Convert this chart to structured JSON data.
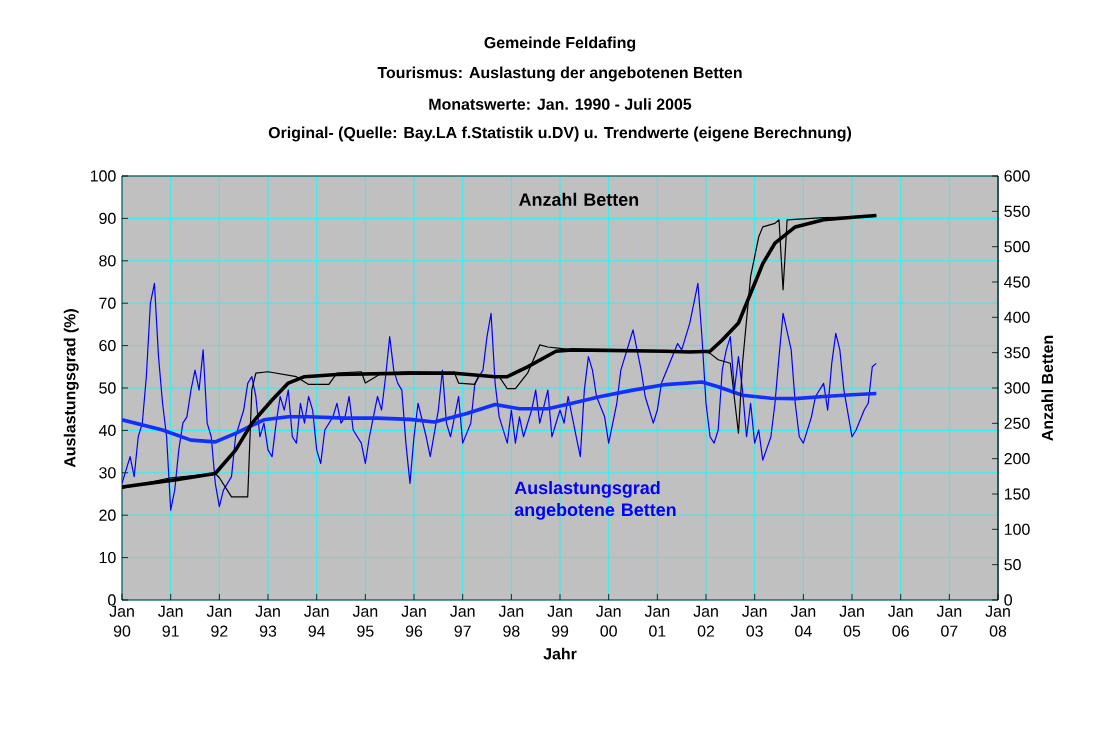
{
  "chart_data": {
    "type": "line",
    "title": "Gemeinde Feldafing",
    "subtitle": "Tourismus: Auslastung der angebotenen Betten",
    "annotations": [
      "Monatswerte: Jan. 1990 - Juli 2005",
      "Original- (Quelle: Bay.LA f.Statistik u.DV) u. Trendwerte (eigene Berechnung)"
    ],
    "xlabel": "Jahr",
    "ylabel": "Auslastungsgrad (%)",
    "y2label": "Anzahl Betten",
    "grid": true,
    "xlim": [
      "1990-01",
      "2008-01"
    ],
    "xticks": [
      {
        "value": "1990-01",
        "label": "Jan 90"
      },
      {
        "value": "1991-01",
        "label": "Jan 91"
      },
      {
        "value": "1992-01",
        "label": "Jan 92"
      },
      {
        "value": "1993-01",
        "label": "Jan 93"
      },
      {
        "value": "1994-01",
        "label": "Jan 94"
      },
      {
        "value": "1995-01",
        "label": "Jan 95"
      },
      {
        "value": "1996-01",
        "label": "Jan 96"
      },
      {
        "value": "1997-01",
        "label": "Jan 97"
      },
      {
        "value": "1998-01",
        "label": "Jan 98"
      },
      {
        "value": "1999-01",
        "label": "Jan 99"
      },
      {
        "value": "2000-01",
        "label": "Jan 00"
      },
      {
        "value": "2001-01",
        "label": "Jan 01"
      },
      {
        "value": "2002-01",
        "label": "Jan 02"
      },
      {
        "value": "2003-01",
        "label": "Jan 03"
      },
      {
        "value": "2004-01",
        "label": "Jan 04"
      },
      {
        "value": "2005-01",
        "label": "Jan 05"
      },
      {
        "value": "2006-01",
        "label": "Jan 06"
      },
      {
        "value": "2007-01",
        "label": "Jan 07"
      },
      {
        "value": "2008-01",
        "label": "Jan 08"
      }
    ],
    "ylim": [
      0,
      100
    ],
    "yticks": [
      0,
      10,
      20,
      30,
      40,
      50,
      60,
      70,
      80,
      90,
      100
    ],
    "y2lim": [
      0,
      600
    ],
    "y2ticks": [
      0,
      50,
      100,
      150,
      200,
      250,
      300,
      350,
      400,
      450,
      500,
      550,
      600
    ],
    "series": [
      {
        "name": "Auslastungsgrad angebotene Betten",
        "color": "#0000ff",
        "x": [
          "1990-01",
          "1990-03",
          "1990-04",
          "1990-05",
          "1990-06",
          "1990-07",
          "1990-08",
          "1990-09",
          "1990-10",
          "1990-11",
          "1990-12",
          "1991-01",
          "1991-02",
          "1991-03",
          "1991-04",
          "1991-05",
          "1991-06",
          "1991-07",
          "1991-08",
          "1991-09",
          "1991-10",
          "1991-11",
          "1991-12",
          "1992-01",
          "1992-02",
          "1992-04",
          "1992-05",
          "1992-07",
          "1992-08",
          "1992-09",
          "1992-10",
          "1992-11",
          "1992-12",
          "1993-01",
          "1993-02",
          "1993-03",
          "1993-04",
          "1993-05",
          "1993-06",
          "1993-07",
          "1993-08",
          "1993-09",
          "1993-10",
          "1993-11",
          "1993-12",
          "1994-01",
          "1994-02",
          "1994-03",
          "1994-05",
          "1994-06",
          "1994-07",
          "1994-08",
          "1994-09",
          "1994-10",
          "1994-12",
          "1995-01",
          "1995-02",
          "1995-04",
          "1995-05",
          "1995-06",
          "1995-07",
          "1995-08",
          "1995-09",
          "1995-10",
          "1995-11",
          "1995-12",
          "1996-01",
          "1996-02",
          "1996-04",
          "1996-05",
          "1996-07",
          "1996-08",
          "1996-09",
          "1996-10",
          "1996-12",
          "1997-01",
          "1997-03",
          "1997-04",
          "1997-06",
          "1997-07",
          "1997-08",
          "1997-09",
          "1997-10",
          "1997-12",
          "1998-01",
          "1998-02",
          "1998-03",
          "1998-04",
          "1998-06",
          "1998-07",
          "1998-08",
          "1998-10",
          "1998-11",
          "1999-01",
          "1999-02",
          "1999-03",
          "1999-05",
          "1999-06",
          "1999-07",
          "1999-08",
          "1999-09",
          "1999-10",
          "1999-12",
          "2000-01",
          "2000-03",
          "2000-04",
          "2000-06",
          "2000-07",
          "2000-09",
          "2000-10",
          "2000-12",
          "2001-01",
          "2001-02",
          "2001-04",
          "2001-06",
          "2001-07",
          "2001-09",
          "2001-10",
          "2001-11",
          "2001-12",
          "2002-01",
          "2002-02",
          "2002-03",
          "2002-04",
          "2002-05",
          "2002-06",
          "2002-07",
          "2002-08",
          "2002-09",
          "2002-10",
          "2002-11",
          "2002-12",
          "2003-01",
          "2003-02",
          "2003-03",
          "2003-05",
          "2003-06",
          "2003-07",
          "2003-08",
          "2003-10",
          "2003-11",
          "2003-12",
          "2004-01",
          "2004-03",
          "2004-04",
          "2004-06",
          "2004-07",
          "2004-08",
          "2004-09",
          "2004-10",
          "2004-11",
          "2005-01",
          "2005-02",
          "2005-04",
          "2005-05",
          "2005-06",
          "2005-07"
        ],
        "values": [
          27.5,
          33.8,
          29.1,
          38.5,
          41.7,
          52.7,
          70.0,
          74.7,
          57.4,
          46.4,
          38.5,
          21.2,
          25.9,
          35.4,
          41.7,
          43.2,
          49.5,
          54.2,
          49.5,
          59.0,
          41.7,
          38.5,
          27.5,
          22.0,
          25.9,
          29.1,
          38.5,
          44.8,
          51.1,
          52.7,
          48.0,
          38.5,
          41.7,
          35.4,
          33.8,
          41.7,
          48.0,
          44.8,
          49.5,
          38.5,
          37.0,
          46.4,
          41.7,
          48.0,
          44.8,
          35.4,
          32.2,
          40.1,
          43.2,
          46.4,
          41.7,
          43.2,
          48.0,
          40.1,
          37.0,
          32.2,
          38.5,
          48.0,
          44.8,
          52.7,
          62.1,
          54.2,
          51.1,
          49.5,
          37.0,
          27.5,
          38.5,
          46.4,
          38.5,
          33.8,
          44.8,
          54.2,
          41.7,
          38.5,
          48.0,
          37.0,
          41.7,
          51.1,
          54.2,
          62.1,
          67.6,
          51.1,
          43.2,
          37.0,
          44.8,
          37.0,
          43.2,
          38.5,
          44.8,
          49.5,
          41.7,
          49.5,
          38.5,
          44.8,
          41.7,
          48.0,
          38.5,
          33.8,
          49.5,
          57.4,
          54.2,
          48.0,
          43.2,
          37.0,
          46.4,
          54.2,
          60.5,
          63.7,
          54.2,
          48.0,
          41.7,
          44.8,
          51.1,
          55.8,
          60.5,
          59.0,
          65.3,
          70.0,
          74.7,
          62.1,
          46.4,
          38.5,
          37.0,
          40.1,
          54.2,
          59.0,
          62.1,
          49.5,
          57.4,
          49.5,
          38.5,
          46.4,
          37.0,
          40.1,
          33.0,
          38.5,
          46.4,
          57.4,
          67.6,
          59.0,
          46.4,
          38.5,
          37.0,
          43.2,
          48.0,
          51.1,
          44.8,
          55.8,
          62.9,
          59.0,
          49.5,
          38.5,
          40.1,
          44.8,
          46.4,
          55.0,
          55.8
        ]
      },
      {
        "color": "#1030ff",
        "x": [
          "1990-01",
          "1990-11",
          "1991-06",
          "1991-12",
          "1992-05",
          "1992-12",
          "1993-06",
          "1993-11",
          "1994-08",
          "1995-04",
          "1995-12",
          "1996-06",
          "1997-02",
          "1997-09",
          "1998-03",
          "1998-10",
          "1999-04",
          "1999-11",
          "2000-07",
          "2001-03",
          "2001-12",
          "2002-04",
          "2002-10",
          "2003-05",
          "2003-11",
          "2004-06",
          "2005-01",
          "2005-07"
        ],
        "values": [
          42.5,
          40.1,
          37.7,
          37.3,
          39.3,
          42.5,
          43.2,
          43.2,
          42.9,
          42.9,
          42.6,
          42.0,
          44.0,
          46.1,
          45.1,
          45.1,
          46.4,
          48.0,
          49.5,
          50.8,
          51.4,
          50.3,
          48.3,
          47.6,
          47.5,
          48.0,
          48.4,
          48.7
        ]
      },
      {
        "name": "Anzahl Betten",
        "color": "#000000",
        "axis": "y2",
        "x": [
          "1990-01",
          "1991-01",
          "1991-12",
          "1992-01",
          "1992-04",
          "1992-08",
          "1992-09",
          "1992-10",
          "1993-01",
          "1993-08",
          "1993-11",
          "1994-04",
          "1994-06",
          "1994-12",
          "1995-01",
          "1995-05",
          "1995-12",
          "1996-11",
          "1996-12",
          "1997-04",
          "1997-05",
          "1997-10",
          "1997-12",
          "1998-02",
          "1998-05",
          "1998-08",
          "1998-10",
          "1999-01",
          "1999-04",
          "1999-11",
          "2000-07",
          "2001-03",
          "2001-12",
          "2002-02",
          "2002-04",
          "2002-07",
          "2002-09",
          "2002-10",
          "2002-12",
          "2003-02",
          "2003-03",
          "2003-06",
          "2003-07",
          "2003-08",
          "2003-09",
          "2004-06",
          "2005-02",
          "2005-07"
        ],
        "values": [
          158,
          173,
          179,
          173,
          146,
          146,
          297,
          321,
          323,
          316,
          305,
          305,
          321,
          323,
          307,
          321,
          323,
          321,
          307,
          305,
          318,
          316,
          299,
          299,
          321,
          361,
          358,
          356,
          354,
          352,
          352,
          352,
          352,
          349,
          340,
          335,
          236,
          335,
          458,
          514,
          528,
          533,
          538,
          439,
          538,
          541,
          542,
          544
        ]
      },
      {
        "color": "#000000",
        "axis": "y2",
        "x": [
          "1990-01",
          "1991-02",
          "1991-12",
          "1992-05",
          "1992-09",
          "1993-02",
          "1993-06",
          "1993-10",
          "1994-06",
          "1995-12",
          "1996-11",
          "1997-09",
          "1997-12",
          "1998-05",
          "1998-12",
          "1999-04",
          "2001-03",
          "2001-09",
          "2002-02",
          "2002-05",
          "2002-09",
          "2002-12",
          "2003-03",
          "2003-06",
          "2003-11",
          "2004-06",
          "2005-02",
          "2005-07"
        ],
        "values": [
          160,
          170,
          179,
          212,
          250,
          283,
          307,
          316,
          319,
          321,
          321,
          316,
          316,
          330,
          352,
          354,
          352,
          351,
          352,
          368,
          392,
          434,
          476,
          505,
          528,
          538,
          542,
          544
        ]
      }
    ]
  }
}
